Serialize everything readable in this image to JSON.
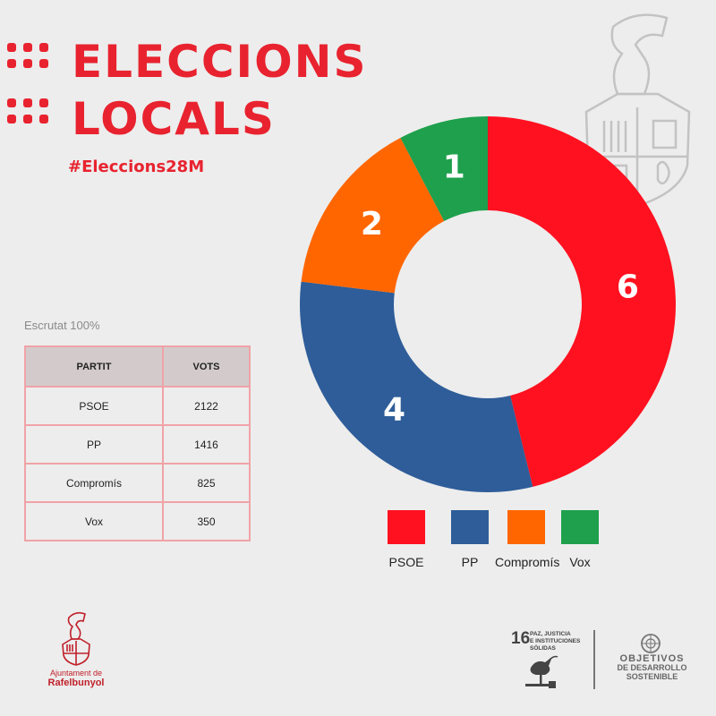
{
  "header": {
    "title_line1": "ELECCIONS",
    "title_line2": "LOCALS",
    "hashtag": "#Eleccions28M"
  },
  "scrutiny": "Escrutat 100%",
  "table": {
    "headers": [
      "PARTIT",
      "VOTS"
    ],
    "rows": [
      {
        "party": "PSOE",
        "votes": "2122"
      },
      {
        "party": "PP",
        "votes": "1416"
      },
      {
        "party": "Compromís",
        "votes": "825"
      },
      {
        "party": "Vox",
        "votes": "350"
      }
    ]
  },
  "chart_data": {
    "type": "pie",
    "donut": true,
    "categories": [
      "PSOE",
      "PP",
      "Compromís",
      "Vox"
    ],
    "values": [
      6,
      4,
      2,
      1
    ],
    "colors": [
      "#ff1120",
      "#2e5d99",
      "#ff6600",
      "#1ea04c"
    ],
    "legend": "bottom"
  },
  "footer": {
    "logo_line1": "Ajuntament de",
    "logo_line2": "Rafelbunyol",
    "sdg_number": "16",
    "sdg_text": [
      "PAZ, JUSTICIA",
      "E INSTITUCIONES",
      "SÓLIDAS"
    ],
    "ods_line1": "OBJETIVOS",
    "ods_line2": "DE DESARROLLO",
    "ods_line3": "SOSTENIBLE",
    "emblem_icon": "coat-of-arms-icon",
    "un_icon": "un-emblem-icon",
    "dove_icon": "dove-gavel-icon"
  }
}
